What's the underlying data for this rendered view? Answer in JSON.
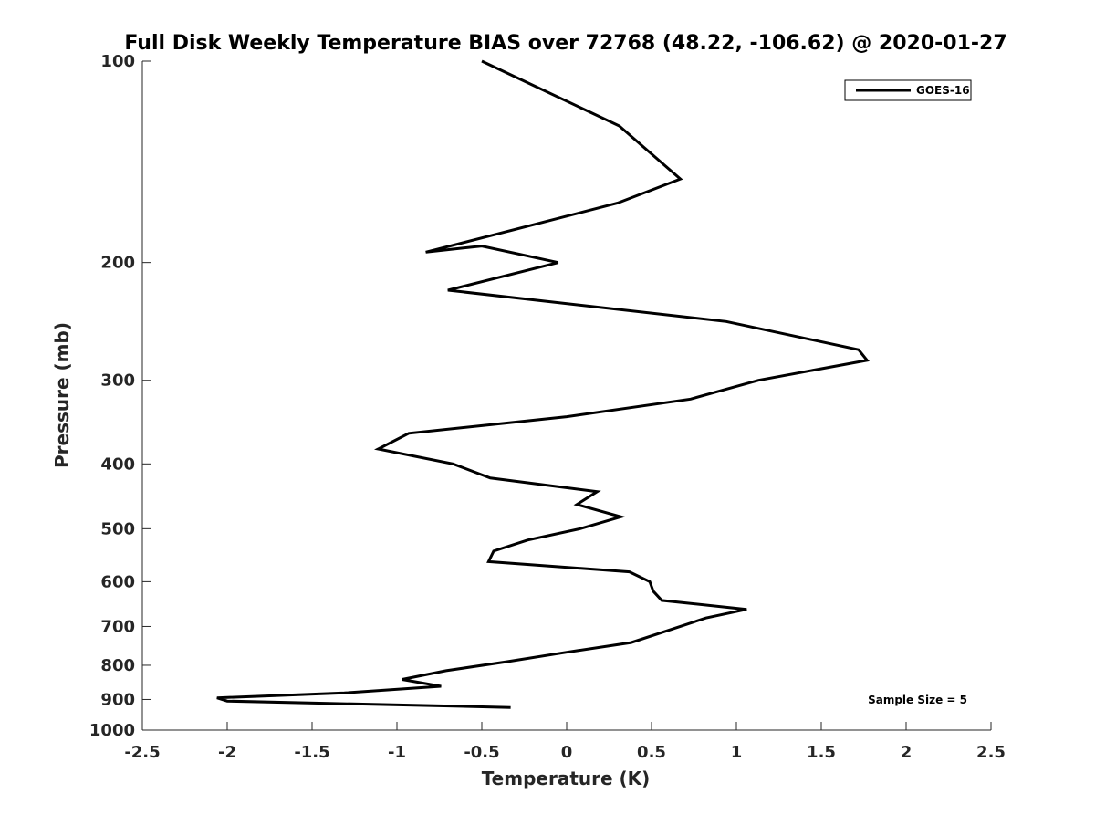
{
  "chart_data": {
    "type": "line",
    "title": "Full Disk Weekly Temperature BIAS over 72768 (48.22, -106.62) @ 2020-01-27",
    "xlabel": "Temperature (K)",
    "ylabel": "Pressure (mb)",
    "xlim": [
      -2.5,
      2.5
    ],
    "ylim": [
      100,
      1000
    ],
    "y_scale": "log",
    "y_reversed": true,
    "grid": false,
    "legend_position": "top-right",
    "x_ticks": [
      -2.5,
      -2,
      -1.5,
      -1,
      -0.5,
      0,
      0.5,
      1,
      1.5,
      2,
      2.5
    ],
    "x_tick_labels": [
      "-2.5",
      "-2",
      "-1.5",
      "-1",
      "-0.5",
      "0",
      "0.5",
      "1",
      "1.5",
      "2",
      "2.5"
    ],
    "y_ticks": [
      100,
      200,
      300,
      400,
      500,
      600,
      700,
      800,
      900,
      1000
    ],
    "y_tick_labels": [
      "100",
      "200",
      "300",
      "400",
      "500",
      "600",
      "700",
      "800",
      "900",
      "1000"
    ],
    "annotation": "Sample Size = 5",
    "series": [
      {
        "name": "GOES-16",
        "color": "#000000",
        "points": [
          [
            -0.5,
            100
          ],
          [
            0.31,
            125
          ],
          [
            0.67,
            150
          ],
          [
            0.3,
            163
          ],
          [
            -0.36,
            180
          ],
          [
            -0.83,
            193
          ],
          [
            -0.5,
            189
          ],
          [
            -0.05,
            200
          ],
          [
            -0.7,
            220
          ],
          [
            0.94,
            245
          ],
          [
            1.72,
            270
          ],
          [
            1.77,
            280
          ],
          [
            1.13,
            300
          ],
          [
            0.73,
            320
          ],
          [
            0,
            340
          ],
          [
            -0.93,
            360
          ],
          [
            -1.11,
            380
          ],
          [
            -0.67,
            400
          ],
          [
            -0.45,
            420
          ],
          [
            0.18,
            440
          ],
          [
            0.06,
            460
          ],
          [
            0.32,
            480
          ],
          [
            0.08,
            500
          ],
          [
            -0.23,
            520
          ],
          [
            -0.43,
            540
          ],
          [
            -0.46,
            560
          ],
          [
            0.37,
            580
          ],
          [
            0.49,
            600
          ],
          [
            0.51,
            620
          ],
          [
            0.56,
            640
          ],
          [
            1.06,
            660
          ],
          [
            0.82,
            680
          ],
          [
            0.38,
            740
          ],
          [
            0,
            765
          ],
          [
            -0.35,
            790
          ],
          [
            -0.71,
            815
          ],
          [
            -0.97,
            840
          ],
          [
            -0.74,
            860
          ],
          [
            -1.31,
            880
          ],
          [
            -2.06,
            895
          ],
          [
            -2.0,
            905
          ],
          [
            -0.33,
            925
          ]
        ]
      }
    ]
  }
}
